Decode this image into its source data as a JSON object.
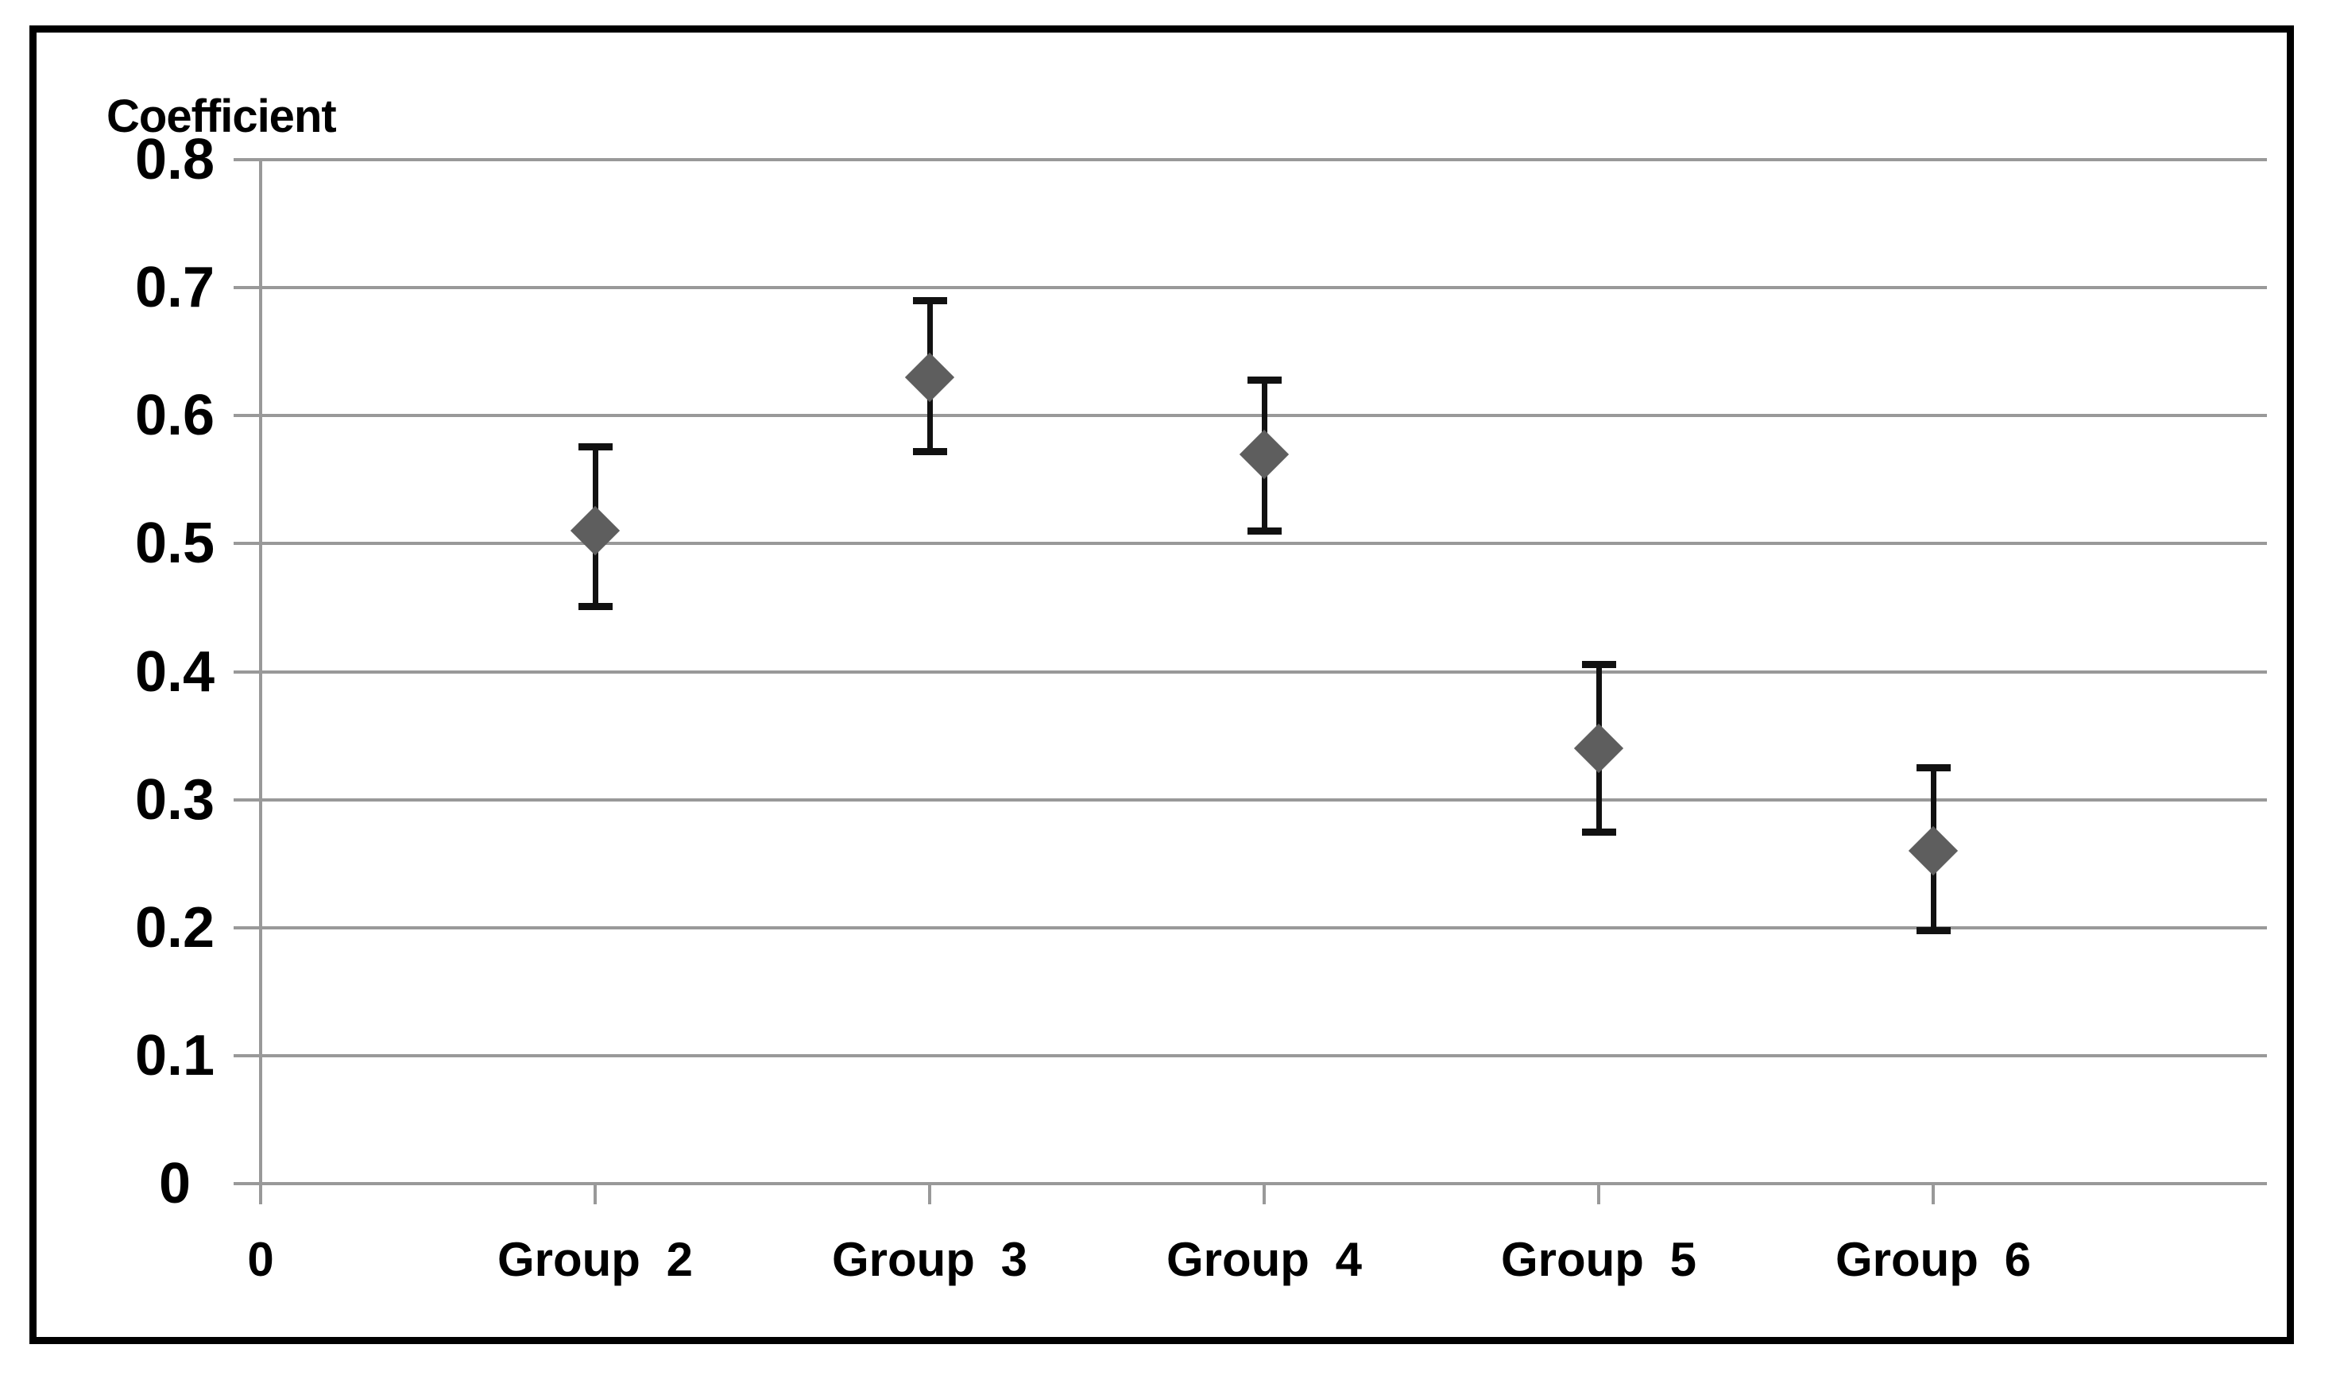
{
  "chart_data": {
    "type": "scatter",
    "title": "Coefficient",
    "categories": [
      "0",
      "Group 2",
      "Group 3",
      "Group 4",
      "Group 5",
      "Group 6"
    ],
    "series": [
      {
        "name": "Coefficient",
        "marker": "diamond",
        "x_categories": [
          "Group 2",
          "Group 3",
          "Group 4",
          "Group 5",
          "Group 6"
        ],
        "values": [
          0.51,
          0.63,
          0.57,
          0.34,
          0.26
        ],
        "ci_low": [
          0.451,
          0.572,
          0.51,
          0.275,
          0.198
        ],
        "ci_high": [
          0.576,
          0.69,
          0.628,
          0.406,
          0.325
        ]
      }
    ],
    "xlabel": "",
    "ylabel": "Coefficient",
    "ylim": [
      0,
      0.8
    ],
    "ytick_labels": [
      "0.8",
      "0.7",
      "0.6",
      "0.5",
      "0.4",
      "0.3",
      "0.2",
      "0.1",
      "0"
    ],
    "ytick_values": [
      0.8,
      0.7,
      0.6,
      0.5,
      0.4,
      0.3,
      0.2,
      0.1,
      0
    ],
    "grid": true,
    "legend": "none",
    "colors": {
      "marker": "#5E5E5E",
      "error_bar": "#111111",
      "gridline": "#999999",
      "axis": "#999999",
      "text": "#000000",
      "frame_border": "#000000",
      "background": "#FFFFFF"
    }
  }
}
